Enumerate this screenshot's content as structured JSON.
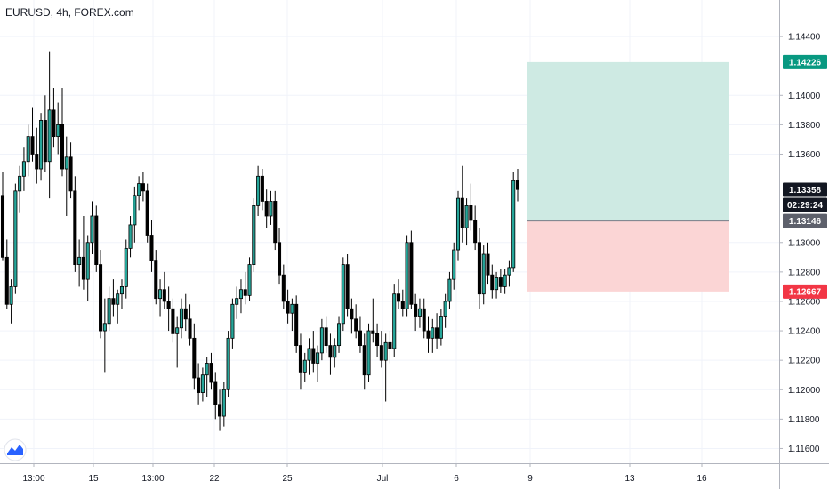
{
  "header": {
    "title": "EURUSD, 4h, FOREX.com"
  },
  "chart_data": {
    "type": "candlestick",
    "symbol": "EURUSD",
    "timeframe": "4h",
    "source": "FOREX.com",
    "ylim": [
      1.115,
      1.146
    ],
    "y_ticks": [
      "1.14400",
      "1.14000",
      "1.13800",
      "1.13600",
      "1.13000",
      "1.12800",
      "1.12600",
      "1.12400",
      "1.12200",
      "1.12000",
      "1.11800",
      "1.11600"
    ],
    "x_ticks": [
      "13:00",
      "15",
      "13:00",
      "22",
      "25",
      "Jul",
      "6",
      "9",
      "13",
      "16"
    ],
    "candles": [
      [
        1.1332,
        1.1348,
        1.1288,
        1.129
      ],
      [
        1.129,
        1.1302,
        1.1255,
        1.1258
      ],
      [
        1.1258,
        1.1275,
        1.1245,
        1.127
      ],
      [
        1.127,
        1.134,
        1.1265,
        1.1335
      ],
      [
        1.1335,
        1.1352,
        1.132,
        1.1345
      ],
      [
        1.1345,
        1.1365,
        1.1335,
        1.1355
      ],
      [
        1.1355,
        1.138,
        1.1345,
        1.1372
      ],
      [
        1.1372,
        1.1392,
        1.1355,
        1.136
      ],
      [
        1.136,
        1.1378,
        1.134,
        1.135
      ],
      [
        1.135,
        1.1388,
        1.1342,
        1.1383
      ],
      [
        1.1383,
        1.14,
        1.1348,
        1.1355
      ],
      [
        1.1355,
        1.143,
        1.133,
        1.139
      ],
      [
        1.139,
        1.1405,
        1.1365,
        1.1372
      ],
      [
        1.1372,
        1.1395,
        1.136,
        1.138
      ],
      [
        1.138,
        1.1405,
        1.1345,
        1.135
      ],
      [
        1.135,
        1.1372,
        1.1318,
        1.1358
      ],
      [
        1.1358,
        1.1368,
        1.133,
        1.1335
      ],
      [
        1.1335,
        1.1345,
        1.128,
        1.1285
      ],
      [
        1.1285,
        1.1302,
        1.127,
        1.129
      ],
      [
        1.129,
        1.1318,
        1.1268,
        1.1275
      ],
      [
        1.1275,
        1.1305,
        1.126,
        1.13
      ],
      [
        1.13,
        1.1328,
        1.1292,
        1.1318
      ],
      [
        1.1318,
        1.1325,
        1.128,
        1.1285
      ],
      [
        1.1285,
        1.1295,
        1.1235,
        1.124
      ],
      [
        1.124,
        1.1262,
        1.1212,
        1.1245
      ],
      [
        1.1245,
        1.127,
        1.124,
        1.1262
      ],
      [
        1.1262,
        1.1275,
        1.125,
        1.1258
      ],
      [
        1.1258,
        1.1268,
        1.1245,
        1.1265
      ],
      [
        1.1265,
        1.1275,
        1.1255,
        1.127
      ],
      [
        1.127,
        1.1302,
        1.1262,
        1.1296
      ],
      [
        1.1296,
        1.1318,
        1.129,
        1.1312
      ],
      [
        1.1312,
        1.1338,
        1.13,
        1.1332
      ],
      [
        1.1332,
        1.1345,
        1.1322,
        1.134
      ],
      [
        1.134,
        1.1348,
        1.1328,
        1.1335
      ],
      [
        1.1335,
        1.134,
        1.13,
        1.1305
      ],
      [
        1.1305,
        1.1315,
        1.128,
        1.1288
      ],
      [
        1.1288,
        1.1295,
        1.1258,
        1.1262
      ],
      [
        1.1262,
        1.1275,
        1.125,
        1.1268
      ],
      [
        1.1268,
        1.128,
        1.1255,
        1.126
      ],
      [
        1.126,
        1.127,
        1.124,
        1.1255
      ],
      [
        1.1255,
        1.1262,
        1.1232,
        1.1238
      ],
      [
        1.1238,
        1.125,
        1.1215,
        1.1242
      ],
      [
        1.1242,
        1.1262,
        1.1235,
        1.1255
      ],
      [
        1.1255,
        1.1265,
        1.124,
        1.1248
      ],
      [
        1.1248,
        1.1258,
        1.123,
        1.1235
      ],
      [
        1.1235,
        1.1245,
        1.12,
        1.1208
      ],
      [
        1.1208,
        1.1218,
        1.119,
        1.1198
      ],
      [
        1.1198,
        1.1215,
        1.1192,
        1.121
      ],
      [
        1.121,
        1.1222,
        1.1195,
        1.1218
      ],
      [
        1.1218,
        1.1225,
        1.12,
        1.1205
      ],
      [
        1.1205,
        1.1212,
        1.118,
        1.119
      ],
      [
        1.119,
        1.12,
        1.1172,
        1.1182
      ],
      [
        1.1182,
        1.1205,
        1.1175,
        1.12
      ],
      [
        1.12,
        1.124,
        1.1195,
        1.1235
      ],
      [
        1.1235,
        1.1262,
        1.1228,
        1.1258
      ],
      [
        1.1258,
        1.127,
        1.1248,
        1.1262
      ],
      [
        1.1262,
        1.1275,
        1.1252,
        1.1268
      ],
      [
        1.1268,
        1.128,
        1.1258,
        1.1264
      ],
      [
        1.1264,
        1.129,
        1.126,
        1.1285
      ],
      [
        1.1285,
        1.133,
        1.128,
        1.1325
      ],
      [
        1.1325,
        1.1352,
        1.1318,
        1.1345
      ],
      [
        1.1345,
        1.135,
        1.1322,
        1.1328
      ],
      [
        1.1328,
        1.1336,
        1.131,
        1.1318
      ],
      [
        1.1318,
        1.1335,
        1.1312,
        1.1328
      ],
      [
        1.1328,
        1.1335,
        1.1295,
        1.13
      ],
      [
        1.13,
        1.131,
        1.1272,
        1.1278
      ],
      [
        1.1278,
        1.1285,
        1.1255,
        1.126
      ],
      [
        1.126,
        1.1268,
        1.1245,
        1.1252
      ],
      [
        1.1252,
        1.1262,
        1.124,
        1.1258
      ],
      [
        1.1258,
        1.1264,
        1.1225,
        1.123
      ],
      [
        1.123,
        1.1238,
        1.12,
        1.1212
      ],
      [
        1.1212,
        1.1225,
        1.1205,
        1.122
      ],
      [
        1.122,
        1.1235,
        1.121,
        1.1228
      ],
      [
        1.1228,
        1.124,
        1.1212,
        1.1218
      ],
      [
        1.1218,
        1.123,
        1.1205,
        1.1225
      ],
      [
        1.1225,
        1.1248,
        1.122,
        1.1242
      ],
      [
        1.1242,
        1.125,
        1.1225,
        1.123
      ],
      [
        1.123,
        1.1238,
        1.121,
        1.1222
      ],
      [
        1.1222,
        1.1235,
        1.1215,
        1.123
      ],
      [
        1.123,
        1.125,
        1.1225,
        1.1245
      ],
      [
        1.1245,
        1.129,
        1.124,
        1.1285
      ],
      [
        1.1285,
        1.1292,
        1.125,
        1.1255
      ],
      [
        1.1255,
        1.1262,
        1.1238,
        1.1248
      ],
      [
        1.1248,
        1.1258,
        1.1235,
        1.124
      ],
      [
        1.124,
        1.125,
        1.1225,
        1.123
      ],
      [
        1.123,
        1.1238,
        1.12,
        1.121
      ],
      [
        1.121,
        1.1245,
        1.1205,
        1.124
      ],
      [
        1.124,
        1.1262,
        1.1232,
        1.1238
      ],
      [
        1.1238,
        1.1245,
        1.1222,
        1.123
      ],
      [
        1.123,
        1.124,
        1.1215,
        1.122
      ],
      [
        1.122,
        1.1238,
        1.1192,
        1.1232
      ],
      [
        1.1232,
        1.124,
        1.1218,
        1.1228
      ],
      [
        1.1228,
        1.1272,
        1.1222,
        1.1265
      ],
      [
        1.1265,
        1.1275,
        1.1255,
        1.126
      ],
      [
        1.126,
        1.1268,
        1.125,
        1.1255
      ],
      [
        1.1255,
        1.1305,
        1.125,
        1.13
      ],
      [
        1.13,
        1.1308,
        1.1255,
        1.1258
      ],
      [
        1.1258,
        1.1265,
        1.124,
        1.125
      ],
      [
        1.125,
        1.1262,
        1.1242,
        1.1255
      ],
      [
        1.1255,
        1.1262,
        1.1235,
        1.124
      ],
      [
        1.124,
        1.125,
        1.1225,
        1.1235
      ],
      [
        1.1235,
        1.1248,
        1.1225,
        1.1242
      ],
      [
        1.1242,
        1.1252,
        1.1228,
        1.1235
      ],
      [
        1.1235,
        1.1255,
        1.123,
        1.125
      ],
      [
        1.125,
        1.1265,
        1.1242,
        1.126
      ],
      [
        1.126,
        1.128,
        1.1255,
        1.1275
      ],
      [
        1.1275,
        1.13,
        1.1268,
        1.1295
      ],
      [
        1.1295,
        1.1335,
        1.1288,
        1.133
      ],
      [
        1.133,
        1.1352,
        1.13,
        1.131
      ],
      [
        1.131,
        1.133,
        1.1298,
        1.1325
      ],
      [
        1.1325,
        1.134,
        1.1308,
        1.1315
      ],
      [
        1.1315,
        1.1325,
        1.1295,
        1.13
      ],
      [
        1.13,
        1.131,
        1.1255,
        1.1265
      ],
      [
        1.1265,
        1.1298,
        1.1258,
        1.1292
      ],
      [
        1.1292,
        1.13,
        1.1272,
        1.1278
      ],
      [
        1.1278,
        1.1285,
        1.1262,
        1.1268
      ],
      [
        1.1268,
        1.128,
        1.1262,
        1.1276
      ],
      [
        1.1276,
        1.1282,
        1.1266,
        1.127
      ],
      [
        1.127,
        1.1282,
        1.1265,
        1.1278
      ],
      [
        1.1278,
        1.1288,
        1.127,
        1.1283
      ],
      [
        1.1283,
        1.1348,
        1.128,
        1.1342
      ],
      [
        1.1342,
        1.135,
        1.1328,
        1.1336
      ]
    ],
    "price_labels": [
      {
        "value": "1.14226",
        "color": "#089981",
        "kind": "target"
      },
      {
        "value": "1.13358",
        "color": "#131722",
        "kind": "last-price"
      },
      {
        "value": "02:29:24",
        "color": "#131722",
        "kind": "countdown"
      },
      {
        "value": "1.13146",
        "color": "#5d606b",
        "kind": "entry"
      },
      {
        "value": "1.12667",
        "color": "#f23645",
        "kind": "stop"
      }
    ],
    "position": {
      "entry": 1.13146,
      "target": 1.14226,
      "stop": 1.12667,
      "profit_color": "#cbe9e2",
      "loss_color": "#fbd3d3"
    },
    "up_color": "#26a69a",
    "down_color": "#000000",
    "grid": true
  }
}
